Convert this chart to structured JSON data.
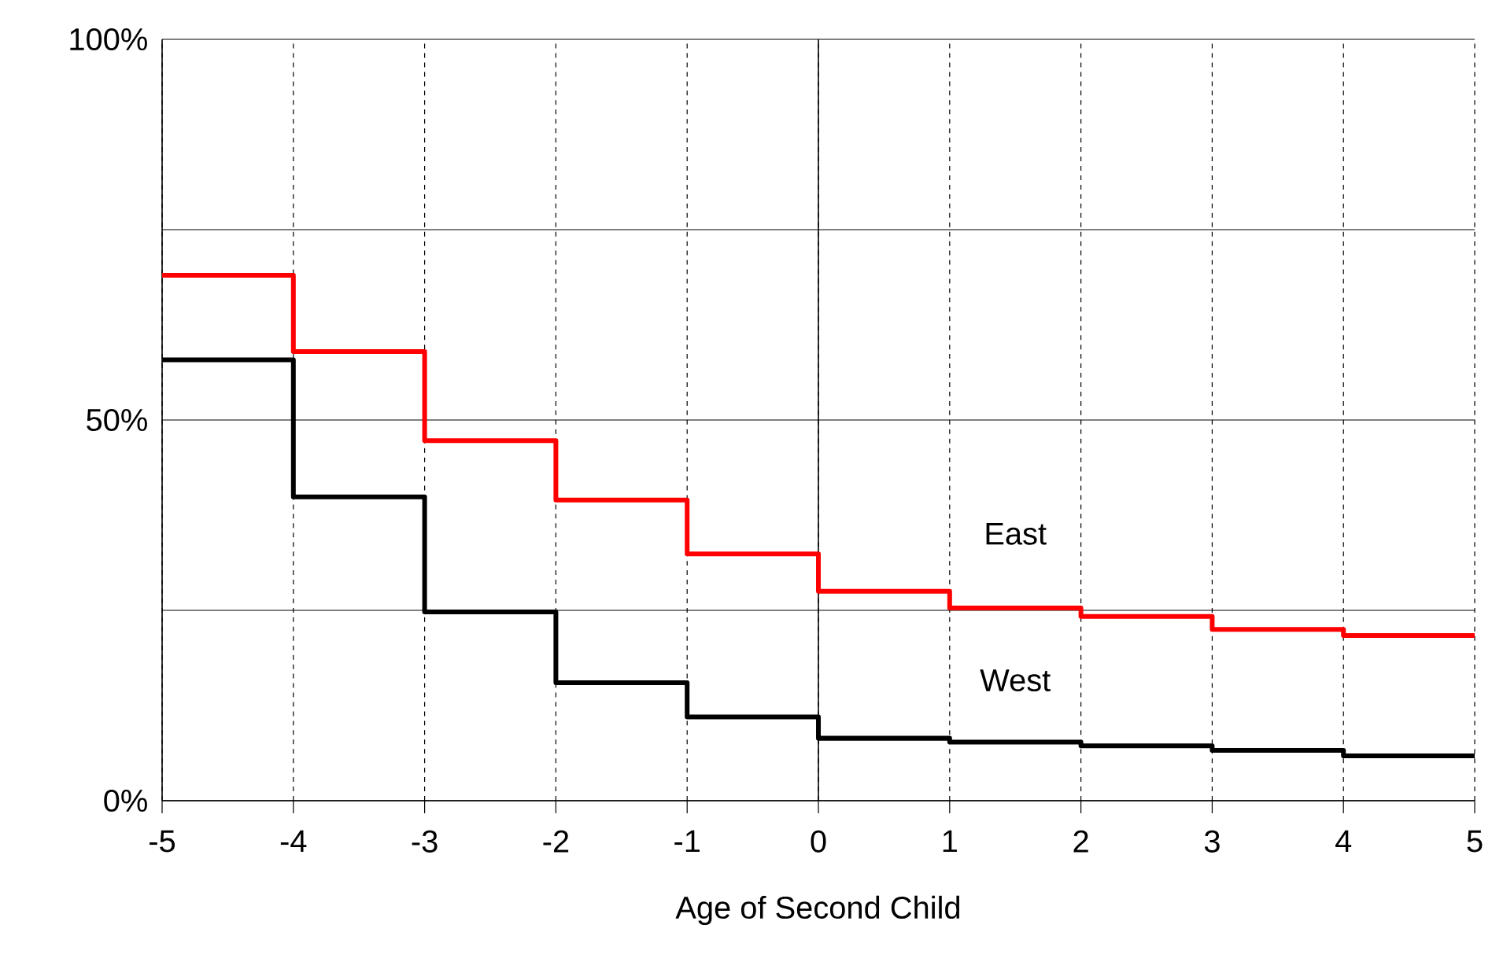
{
  "chart_data": {
    "type": "step",
    "xlabel": "Age of Second Child",
    "x": [
      -5,
      -4,
      -3,
      -2,
      -1,
      0,
      1,
      2,
      3,
      4,
      5
    ],
    "series": [
      {
        "name": "East",
        "color": "#ff0000",
        "values": [
          69,
          59,
          47.3,
          39.5,
          32.4,
          27.5,
          25.3,
          24.2,
          22.5,
          21.7,
          21.7
        ]
      },
      {
        "name": "West",
        "color": "#000000",
        "values": [
          57.9,
          39.9,
          24.8,
          15.5,
          11,
          8.2,
          7.7,
          7.2,
          6.6,
          5.9,
          5.9
        ]
      }
    ],
    "xlim": [
      -5,
      5
    ],
    "ylim": [
      0,
      100
    ],
    "xticks": [
      -5,
      -4,
      -3,
      -2,
      -1,
      0,
      1,
      2,
      3,
      4,
      5
    ],
    "yticks": [
      {
        "value": 0,
        "label": "0%"
      },
      {
        "value": 25,
        "label": null
      },
      {
        "value": 50,
        "label": "50%"
      },
      {
        "value": 75,
        "label": null
      },
      {
        "value": 100,
        "label": "100%"
      }
    ],
    "grid": true,
    "marker": "none",
    "line_style": "solid",
    "ref_lines": [
      {
        "axis": "x",
        "value": 0
      }
    ]
  }
}
